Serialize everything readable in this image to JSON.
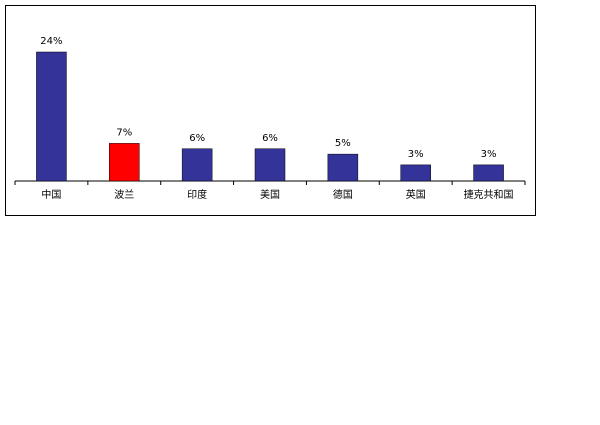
{
  "chart_data": {
    "type": "bar",
    "categories": [
      "中国",
      "波兰",
      "印度",
      "美国",
      "德国",
      "英国",
      "捷克共和国"
    ],
    "values": [
      24,
      7,
      6,
      6,
      5,
      3,
      3
    ],
    "value_labels": [
      "24%",
      "7%",
      "6%",
      "6%",
      "5%",
      "3%",
      "3%"
    ],
    "colors": [
      "#333399",
      "#ff0000",
      "#333399",
      "#333399",
      "#333399",
      "#333399",
      "#333399"
    ]
  }
}
